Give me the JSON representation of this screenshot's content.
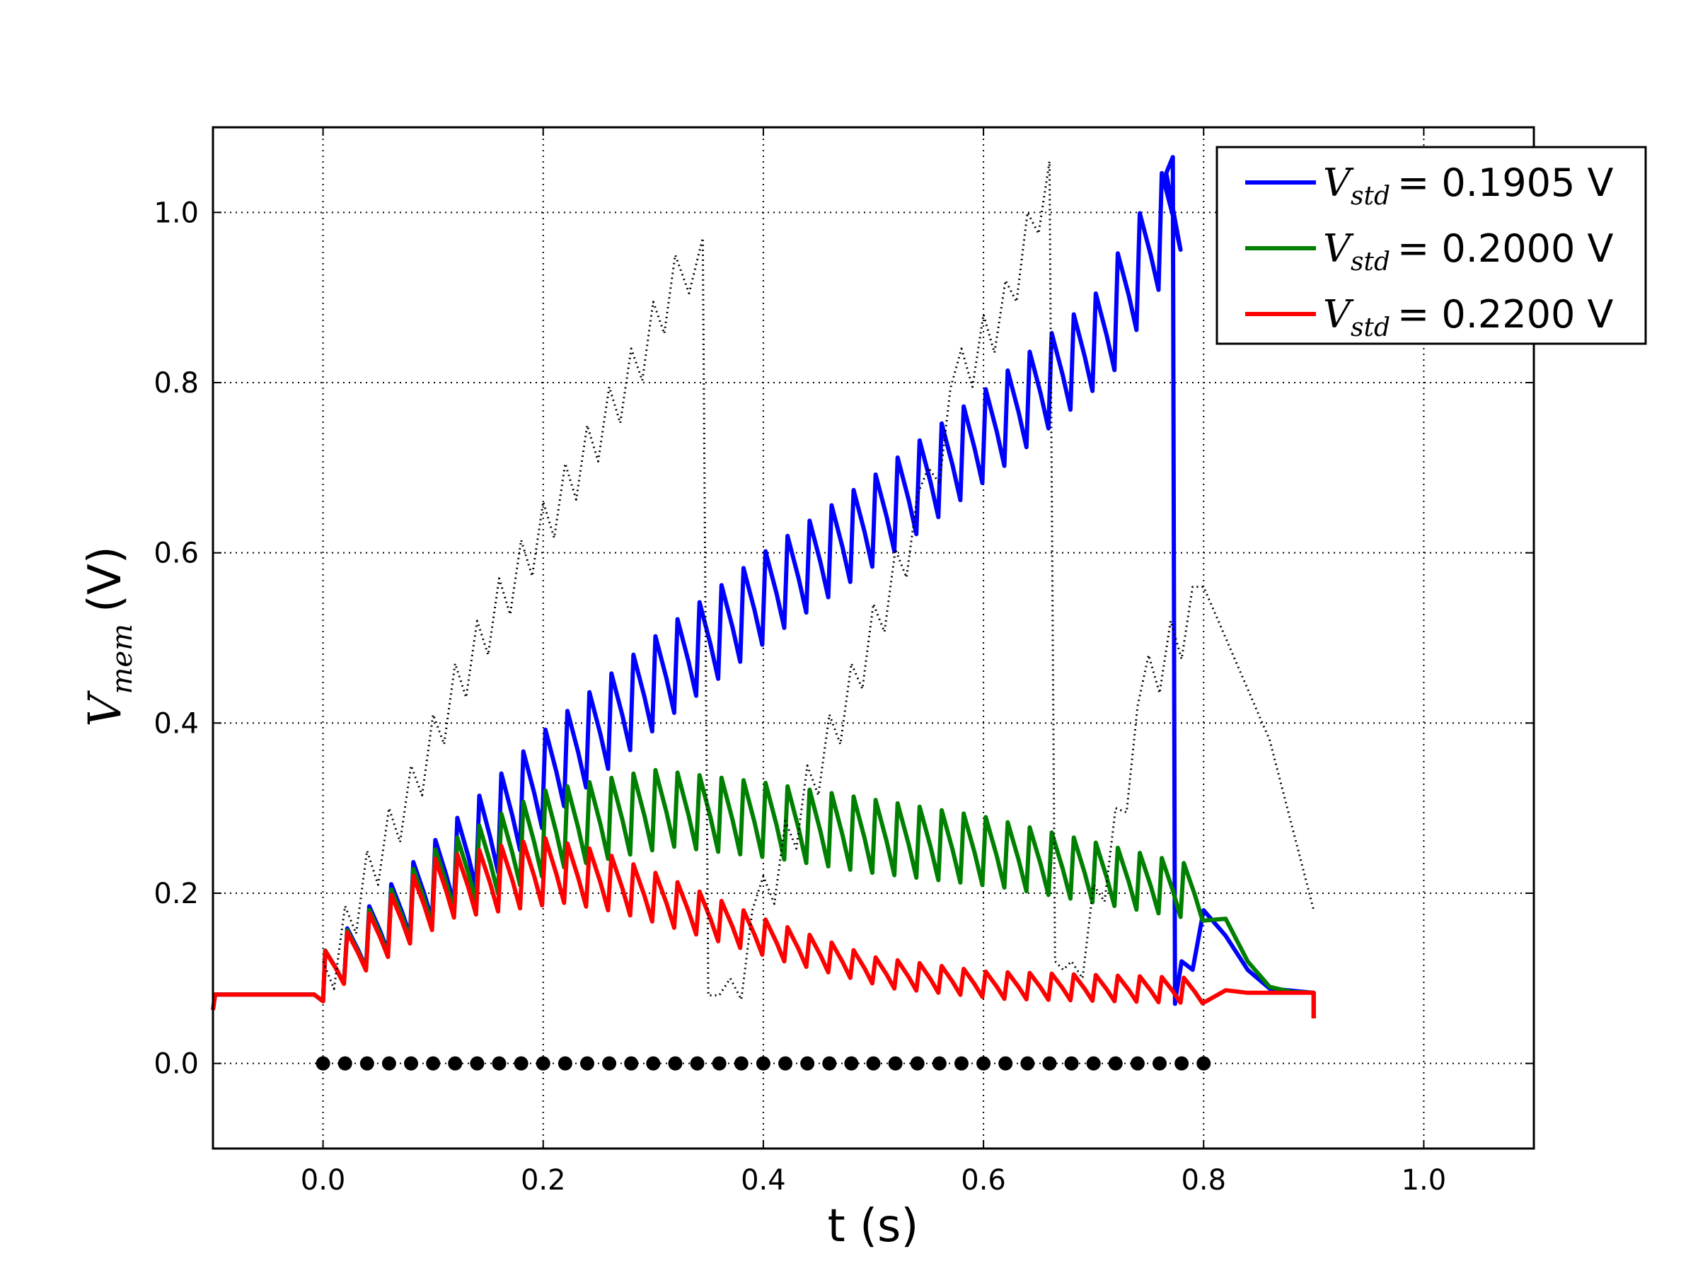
{
  "chart_data": {
    "type": "line",
    "xlabel": "t (s)",
    "ylabel_symbol": "V",
    "ylabel_subscript": "mem",
    "ylabel_unit": "(V)",
    "xlim": [
      -0.1,
      1.1
    ],
    "ylim": [
      -0.1,
      1.1
    ],
    "grid": true,
    "grid_style": "dotted",
    "legend_position": "top-right",
    "xticks": [
      0.0,
      0.2,
      0.4,
      0.6,
      0.8,
      1.0
    ],
    "xtick_labels": [
      "0.0",
      "0.2",
      "0.4",
      "0.6",
      "0.8",
      "1.0"
    ],
    "yticks": [
      0.0,
      0.2,
      0.4,
      0.6,
      0.8,
      1.0
    ],
    "ytick_labels": [
      "0.0",
      "0.2",
      "0.4",
      "0.6",
      "0.8",
      "1.0"
    ],
    "series": [
      {
        "legend_symbol": "V",
        "legend_subscript": "std",
        "legend_value": "= 0.1905",
        "legend_unit": "V",
        "color": "#0000ff",
        "line": "solid",
        "baseline": 0.083,
        "stim_interval": [
          0.0,
          0.8
        ],
        "envelope_t": [
          0.0,
          0.1,
          0.2,
          0.3,
          0.4,
          0.5,
          0.6,
          0.7,
          0.77
        ],
        "envelope_v": [
          0.13,
          0.26,
          0.39,
          0.5,
          0.6,
          0.69,
          0.79,
          0.9,
          1.065
        ],
        "spike_t": 0.772,
        "reset_v": 0.07,
        "post_t": [
          0.775,
          0.78,
          0.79,
          0.8,
          0.82,
          0.84,
          0.86,
          0.9
        ],
        "post_v": [
          0.08,
          0.12,
          0.11,
          0.18,
          0.15,
          0.11,
          0.088,
          0.083
        ]
      },
      {
        "legend_symbol": "V",
        "legend_subscript": "std",
        "legend_value": "= 0.2000",
        "legend_unit": "V",
        "color": "#008000",
        "line": "solid",
        "baseline": 0.083,
        "stim_interval": [
          0.0,
          0.8
        ],
        "envelope_t": [
          0.0,
          0.1,
          0.2,
          0.3,
          0.4,
          0.5,
          0.6,
          0.7,
          0.8
        ],
        "envelope_v": [
          0.13,
          0.25,
          0.32,
          0.345,
          0.33,
          0.31,
          0.29,
          0.26,
          0.23
        ],
        "post_t": [
          0.82,
          0.84,
          0.86,
          0.88,
          0.9
        ],
        "post_v": [
          0.17,
          0.12,
          0.09,
          0.084,
          0.083
        ]
      },
      {
        "legend_symbol": "V",
        "legend_subscript": "std",
        "legend_value": "= 0.2200",
        "legend_unit": "V",
        "color": "#ff0000",
        "line": "solid",
        "baseline": 0.083,
        "stim_interval": [
          0.0,
          0.8
        ],
        "envelope_t": [
          0.0,
          0.1,
          0.2,
          0.25,
          0.3,
          0.4,
          0.5,
          0.6,
          0.7,
          0.8
        ],
        "envelope_v": [
          0.13,
          0.24,
          0.265,
          0.25,
          0.225,
          0.17,
          0.125,
          0.108,
          0.104,
          0.1
        ],
        "post_t": [
          0.82,
          0.84,
          0.86,
          0.9
        ],
        "post_v": [
          0.086,
          0.083,
          0.083,
          0.083
        ]
      },
      {
        "color": "#000000",
        "line": "dotted",
        "points_t": [
          0.0,
          0.04,
          0.08,
          0.12,
          0.16,
          0.2,
          0.24,
          0.28,
          0.32,
          0.345,
          0.35,
          0.37,
          0.4,
          0.44,
          0.48,
          0.5,
          0.55,
          0.58,
          0.62,
          0.66,
          0.665,
          0.68,
          0.72,
          0.75,
          0.8,
          0.82,
          0.86,
          0.9
        ],
        "points_v": [
          0.1,
          0.23,
          0.33,
          0.45,
          0.55,
          0.64,
          0.73,
          0.82,
          0.93,
          0.97,
          0.08,
          0.08,
          0.2,
          0.33,
          0.45,
          0.52,
          0.68,
          0.82,
          0.9,
          1.06,
          0.12,
          0.1,
          0.28,
          0.46,
          0.56,
          0.5,
          0.38,
          0.18
        ]
      }
    ],
    "spike_markers": {
      "color": "#000000",
      "t_start": 0.0,
      "t_step": 0.02,
      "count": 41,
      "v": 0.0
    }
  }
}
